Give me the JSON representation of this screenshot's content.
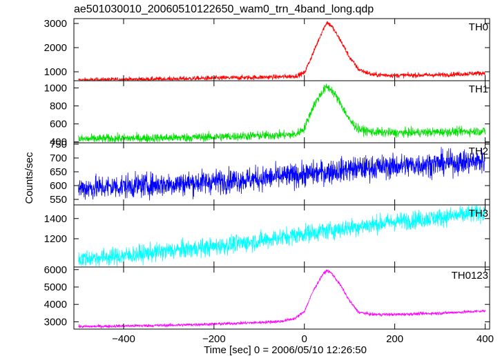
{
  "chart_data": {
    "type": "line",
    "title": "ae501030010_20060510122650_wam0_trn_4band_long.qdp",
    "xlabel": "Time [sec] 0 = 2006/05/10 12:26:50",
    "ylabel": "Counts/sec",
    "xlim": [
      -510,
      410
    ],
    "xticks": [
      -400,
      -200,
      0,
      200,
      400
    ],
    "xtick_labels": [
      "−400",
      "−200",
      "0",
      "200",
      "400"
    ],
    "panels": [
      {
        "name": "TH0",
        "color": "#ff0000",
        "ylim": [
          630,
          3200
        ],
        "yticks": [
          1000,
          2000,
          3000
        ],
        "noise": 50,
        "x": [
          -500,
          -400,
          -300,
          -200,
          -100,
          -50,
          -20,
          0,
          20,
          40,
          50,
          60,
          80,
          100,
          120,
          150,
          200,
          300,
          400
        ],
        "y": [
          650,
          680,
          700,
          740,
          770,
          790,
          820,
          950,
          1800,
          2700,
          3050,
          2900,
          2300,
          1600,
          1100,
          880,
          850,
          870,
          950
        ]
      },
      {
        "name": "TH1",
        "color": "#00e000",
        "ylim": [
          390,
          1080
        ],
        "yticks": [
          400,
          600,
          800,
          1000
        ],
        "noise": 25,
        "x": [
          -500,
          -400,
          -300,
          -200,
          -100,
          -20,
          0,
          20,
          40,
          50,
          60,
          80,
          100,
          120,
          150,
          200,
          300,
          400
        ],
        "y": [
          430,
          440,
          445,
          455,
          470,
          480,
          550,
          800,
          960,
          1010,
          980,
          830,
          640,
          540,
          510,
          500,
          510,
          520
        ]
      },
      {
        "name": "TH2",
        "color": "#0000ff",
        "ylim": [
          530,
          755
        ],
        "yticks": [
          550,
          600,
          650,
          700,
          750
        ],
        "noise": 22,
        "x": [
          -500,
          -300,
          -100,
          0,
          100,
          200,
          300,
          400
        ],
        "y": [
          590,
          605,
          625,
          640,
          660,
          670,
          680,
          690
        ]
      },
      {
        "name": "TH3",
        "color": "#00ffff",
        "ylim": [
          920,
          1535
        ],
        "yticks": [
          1200,
          1400
        ],
        "noise": 45,
        "x": [
          -500,
          -400,
          -300,
          -200,
          -100,
          0,
          100,
          200,
          300,
          400
        ],
        "y": [
          1000,
          1030,
          1080,
          1120,
          1180,
          1250,
          1310,
          1370,
          1410,
          1460
        ]
      },
      {
        "name": "TH0123",
        "color": "#ff00ff",
        "ylim": [
          2580,
          6150
        ],
        "yticks": [
          3000,
          4000,
          5000,
          6000
        ],
        "noise": 45,
        "x": [
          -500,
          -400,
          -300,
          -200,
          -100,
          -50,
          -20,
          0,
          20,
          40,
          50,
          60,
          80,
          100,
          120,
          150,
          200,
          300,
          400
        ],
        "y": [
          2720,
          2760,
          2800,
          2870,
          2960,
          3030,
          3200,
          3600,
          4800,
          5700,
          5950,
          5800,
          5100,
          4200,
          3550,
          3420,
          3420,
          3500,
          3620
        ]
      }
    ]
  }
}
